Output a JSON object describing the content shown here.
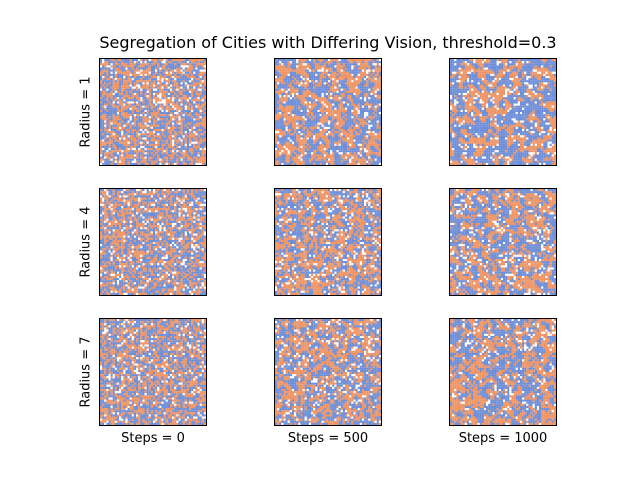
{
  "chart_data": {
    "type": "heatmap",
    "title": "Segregation of Cities with Differing Vision, threshold=0.3",
    "grid_size": 50,
    "colors": {
      "group_a": "#ee9566",
      "group_b": "#6e8fd8",
      "empty": "#ffffff"
    },
    "category_labels": [
      "group_a",
      "group_b",
      "empty"
    ],
    "rows": [
      {
        "label": "Radius = 1",
        "radius": 1
      },
      {
        "label": "Radius = 4",
        "radius": 4
      },
      {
        "label": "Radius = 7",
        "radius": 7
      }
    ],
    "columns": [
      {
        "label": "Steps = 0",
        "steps": 0
      },
      {
        "label": "Steps = 500",
        "steps": 500
      },
      {
        "label": "Steps = 1000",
        "steps": 1000
      }
    ],
    "proportions": {
      "group_a": 0.45,
      "group_b": 0.45,
      "empty": 0.1
    },
    "grid": false,
    "ticks": false
  }
}
